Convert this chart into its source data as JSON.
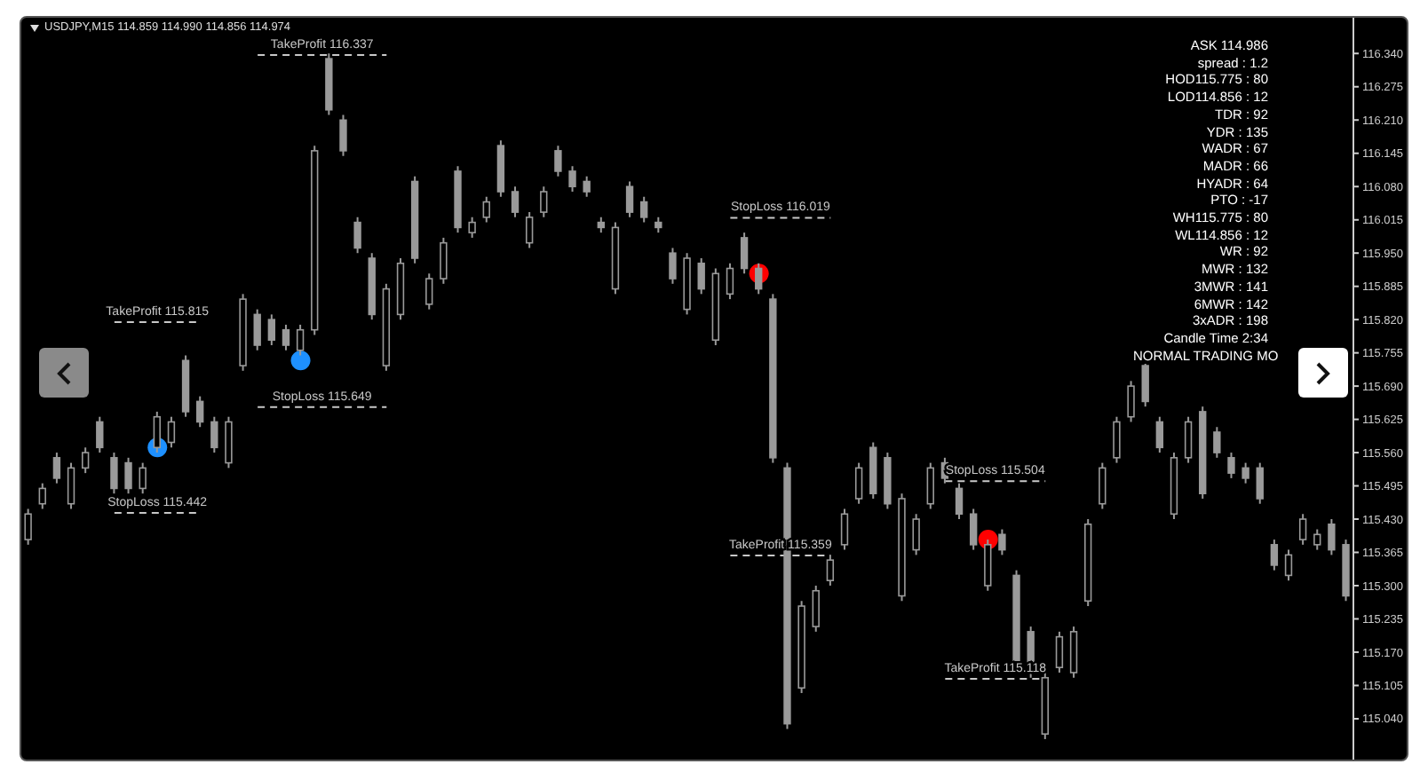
{
  "chart_data": {
    "type": "candlestick",
    "title": "USDJPY,M15 114.859 114.990 114.856 114.974",
    "color": "#9a9a9a",
    "tick_labels": "y",
    "categories": [
      null,
      null,
      null,
      null,
      null,
      null,
      null,
      null,
      null,
      null,
      null,
      null,
      null,
      null,
      null,
      null,
      null,
      null,
      null,
      null,
      null,
      null,
      null,
      null,
      null,
      null,
      null,
      null,
      null,
      null,
      null,
      null,
      null,
      null,
      null,
      null,
      null,
      null,
      null,
      null,
      null,
      null,
      null,
      null,
      null,
      null,
      null,
      null,
      null,
      null,
      null,
      null,
      null,
      null,
      null,
      null,
      null,
      null,
      null,
      null,
      null,
      null,
      null,
      null,
      null,
      null,
      null,
      null,
      null,
      null,
      null,
      null,
      null,
      null,
      null,
      null,
      null,
      null,
      null,
      null,
      null,
      null,
      null,
      null,
      null,
      null,
      null,
      null,
      null,
      null,
      null,
      null,
      null
    ],
    "ohlc": [
      [
        115.39,
        115.45,
        115.38,
        115.44
      ],
      [
        115.46,
        115.5,
        115.45,
        115.49
      ],
      [
        115.55,
        115.56,
        115.5,
        115.51
      ],
      [
        115.46,
        115.54,
        115.45,
        115.53
      ],
      [
        115.53,
        115.57,
        115.52,
        115.56
      ],
      [
        115.62,
        115.63,
        115.56,
        115.57
      ],
      [
        115.55,
        115.56,
        115.48,
        115.49
      ],
      [
        115.54,
        115.55,
        115.48,
        115.49
      ],
      [
        115.49,
        115.54,
        115.48,
        115.53
      ],
      [
        115.57,
        115.64,
        115.56,
        115.63
      ],
      [
        115.58,
        115.63,
        115.57,
        115.62
      ],
      [
        115.74,
        115.75,
        115.63,
        115.64
      ],
      [
        115.66,
        115.67,
        115.61,
        115.62
      ],
      [
        115.62,
        115.63,
        115.56,
        115.57
      ],
      [
        115.54,
        115.63,
        115.53,
        115.62
      ],
      [
        115.73,
        115.87,
        115.72,
        115.86
      ],
      [
        115.83,
        115.84,
        115.76,
        115.77
      ],
      [
        115.82,
        115.83,
        115.77,
        115.78
      ],
      [
        115.8,
        115.81,
        115.76,
        115.77
      ],
      [
        115.76,
        115.81,
        115.75,
        115.8
      ],
      [
        115.8,
        116.16,
        115.79,
        116.15
      ],
      [
        116.33,
        116.34,
        116.22,
        116.23
      ],
      [
        116.21,
        116.22,
        116.14,
        116.15
      ],
      [
        116.01,
        116.02,
        115.95,
        115.96
      ],
      [
        115.94,
        115.95,
        115.82,
        115.83
      ],
      [
        115.73,
        115.89,
        115.72,
        115.88
      ],
      [
        115.83,
        115.94,
        115.82,
        115.93
      ],
      [
        116.09,
        116.1,
        115.93,
        115.94
      ],
      [
        115.85,
        115.91,
        115.84,
        115.9
      ],
      [
        115.9,
        115.98,
        115.89,
        115.97
      ],
      [
        116.11,
        116.12,
        115.99,
        116.0
      ],
      [
        115.99,
        116.02,
        115.98,
        116.01
      ],
      [
        116.02,
        116.06,
        116.01,
        116.05
      ],
      [
        116.16,
        116.17,
        116.06,
        116.07
      ],
      [
        116.07,
        116.08,
        116.02,
        116.03
      ],
      [
        115.97,
        116.03,
        115.96,
        116.02
      ],
      [
        116.03,
        116.08,
        116.02,
        116.07
      ],
      [
        116.15,
        116.16,
        116.1,
        116.11
      ],
      [
        116.11,
        116.12,
        116.07,
        116.08
      ],
      [
        116.09,
        116.1,
        116.06,
        116.07
      ],
      [
        116.01,
        116.02,
        115.99,
        116.0
      ],
      [
        115.88,
        116.01,
        115.87,
        116.0
      ],
      [
        116.08,
        116.09,
        116.02,
        116.03
      ],
      [
        116.05,
        116.06,
        116.01,
        116.02
      ],
      [
        116.01,
        116.02,
        115.99,
        116.0
      ],
      [
        115.95,
        115.96,
        115.89,
        115.9
      ],
      [
        115.84,
        115.95,
        115.83,
        115.94
      ],
      [
        115.93,
        115.94,
        115.87,
        115.88
      ],
      [
        115.78,
        115.92,
        115.77,
        115.91
      ],
      [
        115.87,
        115.93,
        115.86,
        115.92
      ],
      [
        115.98,
        115.99,
        115.91,
        115.92
      ],
      [
        115.92,
        115.93,
        115.87,
        115.88
      ],
      [
        115.86,
        115.87,
        115.54,
        115.55
      ],
      [
        115.53,
        115.54,
        115.02,
        115.03
      ],
      [
        115.1,
        115.27,
        115.09,
        115.26
      ],
      [
        115.22,
        115.3,
        115.21,
        115.29
      ],
      [
        115.31,
        115.36,
        115.3,
        115.35
      ],
      [
        115.38,
        115.45,
        115.37,
        115.44
      ],
      [
        115.47,
        115.54,
        115.46,
        115.53
      ],
      [
        115.57,
        115.58,
        115.47,
        115.48
      ],
      [
        115.55,
        115.56,
        115.45,
        115.46
      ],
      [
        115.28,
        115.48,
        115.27,
        115.47
      ],
      [
        115.37,
        115.44,
        115.36,
        115.43
      ],
      [
        115.46,
        115.54,
        115.45,
        115.53
      ],
      [
        115.54,
        115.55,
        115.5,
        115.51
      ],
      [
        115.49,
        115.5,
        115.43,
        115.44
      ],
      [
        115.44,
        115.45,
        115.37,
        115.38
      ],
      [
        115.3,
        115.39,
        115.29,
        115.38
      ],
      [
        115.4,
        115.41,
        115.36,
        115.37
      ],
      [
        115.32,
        115.33,
        115.13,
        115.14
      ],
      [
        115.21,
        115.22,
        115.12,
        115.13
      ],
      [
        115.01,
        115.13,
        115.0,
        115.12
      ],
      [
        115.14,
        115.21,
        115.13,
        115.2
      ],
      [
        115.13,
        115.22,
        115.12,
        115.21
      ],
      [
        115.27,
        115.43,
        115.26,
        115.42
      ],
      [
        115.46,
        115.54,
        115.45,
        115.53
      ],
      [
        115.55,
        115.63,
        115.54,
        115.62
      ],
      [
        115.63,
        115.7,
        115.62,
        115.69
      ],
      [
        115.73,
        115.74,
        115.65,
        115.66
      ],
      [
        115.62,
        115.63,
        115.56,
        115.57
      ],
      [
        115.44,
        115.56,
        115.43,
        115.55
      ],
      [
        115.55,
        115.63,
        115.54,
        115.62
      ],
      [
        115.64,
        115.65,
        115.47,
        115.48
      ],
      [
        115.6,
        115.61,
        115.55,
        115.56
      ],
      [
        115.55,
        115.56,
        115.51,
        115.52
      ],
      [
        115.53,
        115.54,
        115.5,
        115.51
      ],
      [
        115.53,
        115.54,
        115.46,
        115.47
      ],
      [
        115.38,
        115.39,
        115.33,
        115.34
      ],
      [
        115.32,
        115.37,
        115.31,
        115.36
      ],
      [
        115.39,
        115.44,
        115.38,
        115.43
      ],
      [
        115.38,
        115.41,
        115.37,
        115.4
      ],
      [
        115.42,
        115.43,
        115.36,
        115.37
      ],
      [
        115.38,
        115.39,
        115.27,
        115.28
      ]
    ],
    "series": [
      {
        "type": "scatter",
        "color": "#1e90ff",
        "marker": "circle",
        "values": [
          null,
          null,
          null,
          null,
          null,
          null,
          null,
          null,
          null,
          115.57,
          null,
          null,
          null,
          null,
          null,
          null,
          null,
          null,
          null,
          115.74,
          null,
          null,
          null,
          null,
          null,
          null,
          null,
          null,
          null,
          null,
          null,
          null,
          null,
          null,
          null,
          null,
          null,
          null,
          null,
          null,
          null,
          null,
          null,
          null,
          null,
          null,
          null,
          null,
          null,
          null,
          null,
          null,
          null,
          null,
          null,
          null,
          null,
          null,
          null,
          null,
          null,
          null,
          null,
          null,
          null,
          null,
          null,
          null,
          null,
          null,
          null,
          null,
          null,
          null,
          null,
          null,
          null,
          null,
          null,
          null,
          null,
          null,
          null,
          null,
          null,
          null,
          null,
          null,
          null,
          null,
          null,
          null,
          null
        ]
      },
      {
        "type": "scatter",
        "color": "#ff0000",
        "marker": "circle",
        "values": [
          null,
          null,
          null,
          null,
          null,
          null,
          null,
          null,
          null,
          null,
          null,
          null,
          null,
          null,
          null,
          null,
          null,
          null,
          null,
          null,
          null,
          null,
          null,
          null,
          null,
          null,
          null,
          null,
          null,
          null,
          null,
          null,
          null,
          null,
          null,
          null,
          null,
          null,
          null,
          null,
          null,
          null,
          null,
          null,
          null,
          null,
          null,
          null,
          null,
          null,
          null,
          115.91,
          null,
          null,
          null,
          null,
          null,
          null,
          null,
          null,
          null,
          null,
          null,
          null,
          null,
          null,
          null,
          115.39,
          null,
          null,
          null,
          null,
          null,
          null,
          null,
          null,
          null,
          null,
          null,
          null,
          null,
          null,
          null,
          null,
          null,
          null,
          null,
          null,
          null,
          null,
          null,
          null,
          null
        ]
      },
      {
        "type": "line",
        "name": "TakeProfit 116.337",
        "color": "#c8c8c8",
        "line_style": "dashed",
        "values": [
          null,
          null,
          null,
          null,
          null,
          null,
          null,
          null,
          null,
          null,
          null,
          null,
          null,
          null,
          null,
          null,
          116.337,
          null,
          null,
          null,
          null,
          null,
          null,
          null,
          null,
          116.337,
          null,
          null,
          null,
          null,
          null,
          null,
          null,
          null,
          null,
          null,
          null,
          null,
          null,
          null,
          null,
          null,
          null,
          null,
          null,
          null,
          null,
          null,
          null,
          null,
          null,
          null,
          null,
          null,
          null,
          null,
          null,
          null,
          null,
          null,
          null,
          null,
          null,
          null,
          null,
          null,
          null,
          null,
          null,
          null,
          null,
          null,
          null,
          null,
          null,
          null,
          null,
          null,
          null,
          null,
          null,
          null,
          null,
          null,
          null,
          null,
          null,
          null,
          null,
          null,
          null,
          null,
          null
        ]
      },
      {
        "type": "line",
        "name": "TakeProfit 115.815",
        "color": "#c8c8c8",
        "line_style": "dashed",
        "values": [
          null,
          null,
          null,
          null,
          null,
          null,
          115.815,
          null,
          null,
          null,
          null,
          null,
          115.815,
          null,
          null,
          null,
          null,
          null,
          null,
          null,
          null,
          null,
          null,
          null,
          null,
          null,
          null,
          null,
          null,
          null,
          null,
          null,
          null,
          null,
          null,
          null,
          null,
          null,
          null,
          null,
          null,
          null,
          null,
          null,
          null,
          null,
          null,
          null,
          null,
          null,
          null,
          null,
          null,
          null,
          null,
          null,
          null,
          null,
          null,
          null,
          null,
          null,
          null,
          null,
          null,
          null,
          null,
          null,
          null,
          null,
          null,
          null,
          null,
          null,
          null,
          null,
          null,
          null,
          null,
          null,
          null,
          null,
          null,
          null,
          null,
          null,
          null,
          null,
          null,
          null,
          null,
          null,
          null
        ]
      },
      {
        "type": "line",
        "name": "StopLoss 115.649",
        "color": "#c8c8c8",
        "line_style": "dashed",
        "values": [
          null,
          null,
          null,
          null,
          null,
          null,
          null,
          null,
          null,
          null,
          null,
          null,
          null,
          null,
          null,
          null,
          115.649,
          null,
          null,
          null,
          null,
          null,
          null,
          null,
          null,
          115.649,
          null,
          null,
          null,
          null,
          null,
          null,
          null,
          null,
          null,
          null,
          null,
          null,
          null,
          null,
          null,
          null,
          null,
          null,
          null,
          null,
          null,
          null,
          null,
          null,
          null,
          null,
          null,
          null,
          null,
          null,
          null,
          null,
          null,
          null,
          null,
          null,
          null,
          null,
          null,
          null,
          null,
          null,
          null,
          null,
          null,
          null,
          null,
          null,
          null,
          null,
          null,
          null,
          null,
          null,
          null,
          null,
          null,
          null,
          null,
          null,
          null,
          null,
          null,
          null,
          null,
          null,
          null
        ]
      },
      {
        "type": "line",
        "name": "StopLoss 115.442",
        "color": "#c8c8c8",
        "line_style": "dashed",
        "values": [
          null,
          null,
          null,
          null,
          null,
          null,
          115.442,
          null,
          null,
          null,
          null,
          null,
          115.442,
          null,
          null,
          null,
          null,
          null,
          null,
          null,
          null,
          null,
          null,
          null,
          null,
          null,
          null,
          null,
          null,
          null,
          null,
          null,
          null,
          null,
          null,
          null,
          null,
          null,
          null,
          null,
          null,
          null,
          null,
          null,
          null,
          null,
          null,
          null,
          null,
          null,
          null,
          null,
          null,
          null,
          null,
          null,
          null,
          null,
          null,
          null,
          null,
          null,
          null,
          null,
          null,
          null,
          null,
          null,
          null,
          null,
          null,
          null,
          null,
          null,
          null,
          null,
          null,
          null,
          null,
          null,
          null,
          null,
          null,
          null,
          null,
          null,
          null,
          null,
          null,
          null,
          null,
          null,
          null
        ]
      },
      {
        "type": "line",
        "name": "StopLoss 116.019",
        "color": "#c8c8c8",
        "line_style": "dashed",
        "values": [
          null,
          null,
          null,
          null,
          null,
          null,
          null,
          null,
          null,
          null,
          null,
          null,
          null,
          null,
          null,
          null,
          null,
          null,
          null,
          null,
          null,
          null,
          null,
          null,
          null,
          null,
          null,
          null,
          null,
          null,
          null,
          null,
          null,
          null,
          null,
          null,
          null,
          null,
          null,
          null,
          null,
          null,
          null,
          null,
          null,
          null,
          null,
          null,
          null,
          116.019,
          null,
          null,
          null,
          null,
          null,
          null,
          116.019,
          null,
          null,
          null,
          null,
          null,
          null,
          null,
          null,
          null,
          null,
          null,
          null,
          null,
          null,
          null,
          null,
          null,
          null,
          null,
          null,
          null,
          null,
          null,
          null,
          null,
          null,
          null,
          null,
          null,
          null,
          null,
          null,
          null,
          null,
          null,
          null
        ]
      },
      {
        "type": "line",
        "name": "TakeProfit 115.359",
        "color": "#c8c8c8",
        "line_style": "dashed",
        "values": [
          null,
          null,
          null,
          null,
          null,
          null,
          null,
          null,
          null,
          null,
          null,
          null,
          null,
          null,
          null,
          null,
          null,
          null,
          null,
          null,
          null,
          null,
          null,
          null,
          null,
          null,
          null,
          null,
          null,
          null,
          null,
          null,
          null,
          null,
          null,
          null,
          null,
          null,
          null,
          null,
          null,
          null,
          null,
          null,
          null,
          null,
          null,
          null,
          null,
          115.359,
          null,
          null,
          null,
          null,
          null,
          null,
          115.359,
          null,
          null,
          null,
          null,
          null,
          null,
          null,
          null,
          null,
          null,
          null,
          null,
          null,
          null,
          null,
          null,
          null,
          null,
          null,
          null,
          null,
          null,
          null,
          null,
          null,
          null,
          null,
          null,
          null,
          null,
          null,
          null,
          null,
          null,
          null,
          null
        ]
      },
      {
        "type": "line",
        "name": "StopLoss 115.504",
        "color": "#c8c8c8",
        "line_style": "dashed",
        "values": [
          null,
          null,
          null,
          null,
          null,
          null,
          null,
          null,
          null,
          null,
          null,
          null,
          null,
          null,
          null,
          null,
          null,
          null,
          null,
          null,
          null,
          null,
          null,
          null,
          null,
          null,
          null,
          null,
          null,
          null,
          null,
          null,
          null,
          null,
          null,
          null,
          null,
          null,
          null,
          null,
          null,
          null,
          null,
          null,
          null,
          null,
          null,
          null,
          null,
          null,
          null,
          null,
          null,
          null,
          null,
          null,
          null,
          null,
          null,
          null,
          null,
          null,
          null,
          null,
          115.504,
          null,
          null,
          null,
          null,
          null,
          null,
          115.504,
          null,
          null,
          null,
          null,
          null,
          null,
          null,
          null,
          null,
          null,
          null,
          null,
          null,
          null,
          null,
          null,
          null,
          null,
          null,
          null,
          null
        ]
      },
      {
        "type": "line",
        "name": "TakeProfit 115.118",
        "color": "#c8c8c8",
        "line_style": "dashed",
        "values": [
          null,
          null,
          null,
          null,
          null,
          null,
          null,
          null,
          null,
          null,
          null,
          null,
          null,
          null,
          null,
          null,
          null,
          null,
          null,
          null,
          null,
          null,
          null,
          null,
          null,
          null,
          null,
          null,
          null,
          null,
          null,
          null,
          null,
          null,
          null,
          null,
          null,
          null,
          null,
          null,
          null,
          null,
          null,
          null,
          null,
          null,
          null,
          null,
          null,
          null,
          null,
          null,
          null,
          null,
          null,
          null,
          null,
          null,
          null,
          null,
          null,
          null,
          null,
          null,
          115.118,
          null,
          null,
          null,
          null,
          null,
          null,
          115.118,
          null,
          null,
          null,
          null,
          null,
          null,
          null,
          null,
          null,
          null,
          null,
          null,
          null,
          null,
          null,
          null,
          null,
          null,
          null,
          null,
          null
        ]
      }
    ],
    "ylim": [
      114.96,
      116.41
    ],
    "yticks": [
      {
        "value": 116.34,
        "label": "116.340"
      },
      {
        "value": 116.275,
        "label": "116.275"
      },
      {
        "value": 116.21,
        "label": "116.210"
      },
      {
        "value": 116.145,
        "label": "116.145"
      },
      {
        "value": 116.08,
        "label": "116.080"
      },
      {
        "value": 116.015,
        "label": "116.015"
      },
      {
        "value": 115.95,
        "label": "115.950"
      },
      {
        "value": 115.885,
        "label": "115.885"
      },
      {
        "value": 115.82,
        "label": "115.820"
      },
      {
        "value": 115.755,
        "label": "115.755"
      },
      {
        "value": 115.69,
        "label": "115.690"
      },
      {
        "value": 115.625,
        "label": "115.625"
      },
      {
        "value": 115.56,
        "label": "115.560"
      },
      {
        "value": 115.495,
        "label": "115.495"
      },
      {
        "value": 115.43,
        "label": "115.430"
      },
      {
        "value": 115.365,
        "label": "115.365"
      },
      {
        "value": 115.3,
        "label": "115.300"
      },
      {
        "value": 115.235,
        "label": "115.235"
      },
      {
        "value": 115.17,
        "label": "115.170"
      },
      {
        "value": 115.105,
        "label": "115.105"
      },
      {
        "value": 115.04,
        "label": "115.040"
      }
    ],
    "annotations": [
      "ASK 114.986",
      "spread : 1.2",
      "HOD115.775 : 80",
      "LOD114.856 : 12",
      "TDR : 92",
      "YDR : 135",
      "WADR : 67",
      "MADR : 66",
      "HYADR : 64",
      "PTO : -17",
      "WH115.775 : 80",
      "WL114.856 : 12",
      "WR : 92",
      "MWR : 132",
      "3MWR : 141",
      "6MWR : 142",
      "3xADR : 198",
      "Candle Time 2:34",
      "NORMAL TRADING MO"
    ]
  }
}
